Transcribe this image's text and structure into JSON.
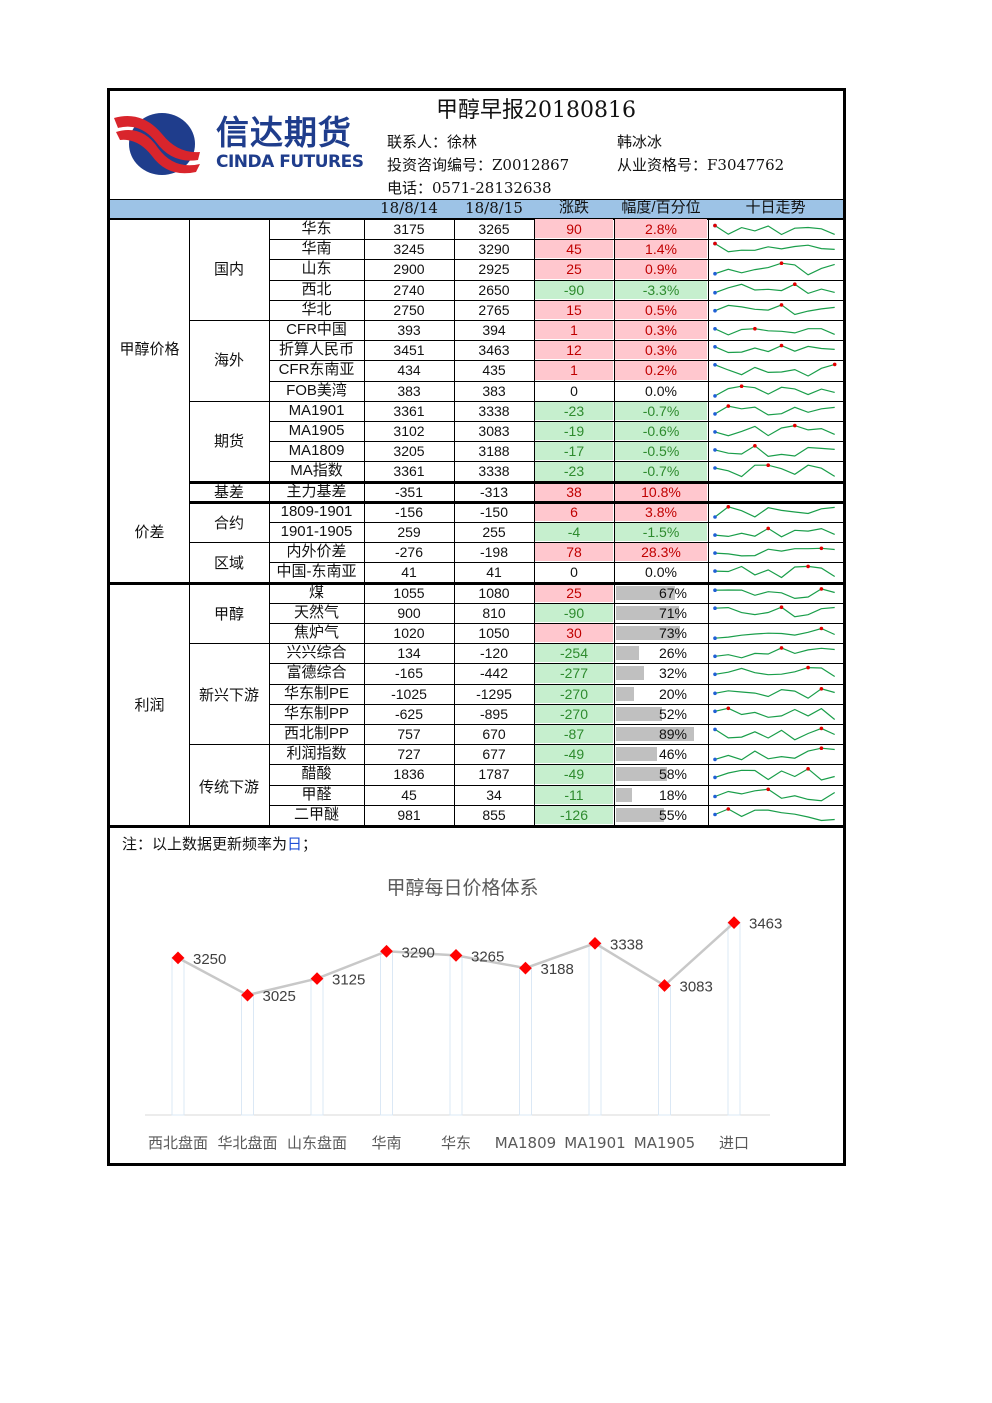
{
  "header": {
    "logo_cn": "信达期货",
    "logo_en": "CINDA FUTURES",
    "title": "甲醇早报20180816",
    "contact_label": "联系人：徐林",
    "contact2": "韩冰冰",
    "advisor_label": "投资咨询编号：Z0012867",
    "license_label": "从业资格号：F3047762",
    "phone_label": "电话：0571-28132638"
  },
  "columns": {
    "d1": "18/8/14",
    "d2": "18/8/15",
    "chg": "涨跌",
    "pct": "幅度/百分位",
    "trend": "十日走势"
  },
  "groups": {
    "price": "甲醇价格",
    "spread": "价差",
    "profit": "利润",
    "domestic": "国内",
    "overseas": "海外",
    "futures": "期货",
    "basis": "基差",
    "contract": "合约",
    "region": "区域",
    "methanol": "甲醇",
    "new_down": "新兴下游",
    "trad_down": "传统下游"
  },
  "rows": [
    {
      "name": "华东",
      "v1": "3175",
      "v2": "3265",
      "chg": "90",
      "pct": "2.8%",
      "dir": "up",
      "kind": "pct"
    },
    {
      "name": "华南",
      "v1": "3245",
      "v2": "3290",
      "chg": "45",
      "pct": "1.4%",
      "dir": "up",
      "kind": "pct"
    },
    {
      "name": "山东",
      "v1": "2900",
      "v2": "2925",
      "chg": "25",
      "pct": "0.9%",
      "dir": "up",
      "kind": "pct"
    },
    {
      "name": "西北",
      "v1": "2740",
      "v2": "2650",
      "chg": "-90",
      "pct": "-3.3%",
      "dir": "down",
      "kind": "pct"
    },
    {
      "name": "华北",
      "v1": "2750",
      "v2": "2765",
      "chg": "15",
      "pct": "0.5%",
      "dir": "up",
      "kind": "pct"
    },
    {
      "name": "CFR中国",
      "v1": "393",
      "v2": "394",
      "chg": "1",
      "pct": "0.3%",
      "dir": "up",
      "kind": "pct"
    },
    {
      "name": "折算人民币",
      "v1": "3451",
      "v2": "3463",
      "chg": "12",
      "pct": "0.3%",
      "dir": "up",
      "kind": "pct"
    },
    {
      "name": "CFR东南亚",
      "v1": "434",
      "v2": "435",
      "chg": "1",
      "pct": "0.2%",
      "dir": "up",
      "kind": "pct"
    },
    {
      "name": "FOB美湾",
      "v1": "383",
      "v2": "383",
      "chg": "0",
      "pct": "0.0%",
      "dir": "flat",
      "kind": "pct"
    },
    {
      "name": "MA1901",
      "v1": "3361",
      "v2": "3338",
      "chg": "-23",
      "pct": "-0.7%",
      "dir": "down",
      "kind": "pct"
    },
    {
      "name": "MA1905",
      "v1": "3102",
      "v2": "3083",
      "chg": "-19",
      "pct": "-0.6%",
      "dir": "down",
      "kind": "pct"
    },
    {
      "name": "MA1809",
      "v1": "3205",
      "v2": "3188",
      "chg": "-17",
      "pct": "-0.5%",
      "dir": "down",
      "kind": "pct"
    },
    {
      "name": "MA指数",
      "v1": "3361",
      "v2": "3338",
      "chg": "-23",
      "pct": "-0.7%",
      "dir": "down",
      "kind": "pct"
    },
    {
      "name": "主力基差",
      "v1": "-351",
      "v2": "-313",
      "chg": "38",
      "pct": "10.8%",
      "dir": "up",
      "kind": "pct"
    },
    {
      "name": "1809-1901",
      "v1": "-156",
      "v2": "-150",
      "chg": "6",
      "pct": "3.8%",
      "dir": "up",
      "kind": "pct"
    },
    {
      "name": "1901-1905",
      "v1": "259",
      "v2": "255",
      "chg": "-4",
      "pct": "-1.5%",
      "dir": "down",
      "kind": "pct"
    },
    {
      "name": "内外价差",
      "v1": "-276",
      "v2": "-198",
      "chg": "78",
      "pct": "28.3%",
      "dir": "up",
      "kind": "pct"
    },
    {
      "name": "中国-东南亚",
      "v1": "41",
      "v2": "41",
      "chg": "0",
      "pct": "0.0%",
      "dir": "flat",
      "kind": "pct"
    },
    {
      "name": "煤",
      "v1": "1055",
      "v2": "1080",
      "chg": "25",
      "pct": "67%",
      "dir": "up",
      "kind": "bar",
      "frac": 0.67
    },
    {
      "name": "天然气",
      "v1": "900",
      "v2": "810",
      "chg": "-90",
      "pct": "71%",
      "dir": "down",
      "kind": "bar",
      "frac": 0.71
    },
    {
      "name": "焦炉气",
      "v1": "1020",
      "v2": "1050",
      "chg": "30",
      "pct": "73%",
      "dir": "up",
      "kind": "bar",
      "frac": 0.73
    },
    {
      "name": "兴兴综合",
      "v1": "134",
      "v2": "-120",
      "chg": "-254",
      "pct": "26%",
      "dir": "down",
      "kind": "bar",
      "frac": 0.26
    },
    {
      "name": "富德综合",
      "v1": "-165",
      "v2": "-442",
      "chg": "-277",
      "pct": "32%",
      "dir": "down",
      "kind": "bar",
      "frac": 0.32
    },
    {
      "name": "华东制PE",
      "v1": "-1025",
      "v2": "-1295",
      "chg": "-270",
      "pct": "20%",
      "dir": "down",
      "kind": "bar",
      "frac": 0.2
    },
    {
      "name": "华东制PP",
      "v1": "-625",
      "v2": "-895",
      "chg": "-270",
      "pct": "52%",
      "dir": "down",
      "kind": "bar",
      "frac": 0.52
    },
    {
      "name": "西北制PP",
      "v1": "757",
      "v2": "670",
      "chg": "-87",
      "pct": "89%",
      "dir": "down",
      "kind": "bar",
      "frac": 0.89
    },
    {
      "name": "利润指数",
      "v1": "727",
      "v2": "677",
      "chg": "-49",
      "pct": "46%",
      "dir": "down",
      "kind": "bar",
      "frac": 0.46
    },
    {
      "name": "醋酸",
      "v1": "1836",
      "v2": "1787",
      "chg": "-49",
      "pct": "58%",
      "dir": "down",
      "kind": "bar",
      "frac": 0.58
    },
    {
      "name": "甲醛",
      "v1": "45",
      "v2": "34",
      "chg": "-11",
      "pct": "18%",
      "dir": "down",
      "kind": "bar",
      "frac": 0.18
    },
    {
      "name": "二甲醚",
      "v1": "981",
      "v2": "855",
      "chg": "-126",
      "pct": "55%",
      "dir": "down",
      "kind": "bar",
      "frac": 0.55
    }
  ],
  "note": {
    "prefix": "注：以上数据更新频率为",
    "highlight": "日",
    "suffix": "；"
  },
  "chart_data": {
    "type": "line",
    "title": "甲醇每日价格体系",
    "categories": [
      "西北盘面",
      "华北盘面",
      "山东盘面",
      "华南",
      "华东",
      "MA1809",
      "MA1901",
      "MA1905",
      "进口"
    ],
    "values": [
      3250,
      3025,
      3125,
      3290,
      3265,
      3188,
      3338,
      3083,
      3463
    ],
    "ylim": [
      2300,
      3600
    ],
    "marker_color": "#ff0000",
    "line_color": "#c8c8c8"
  }
}
